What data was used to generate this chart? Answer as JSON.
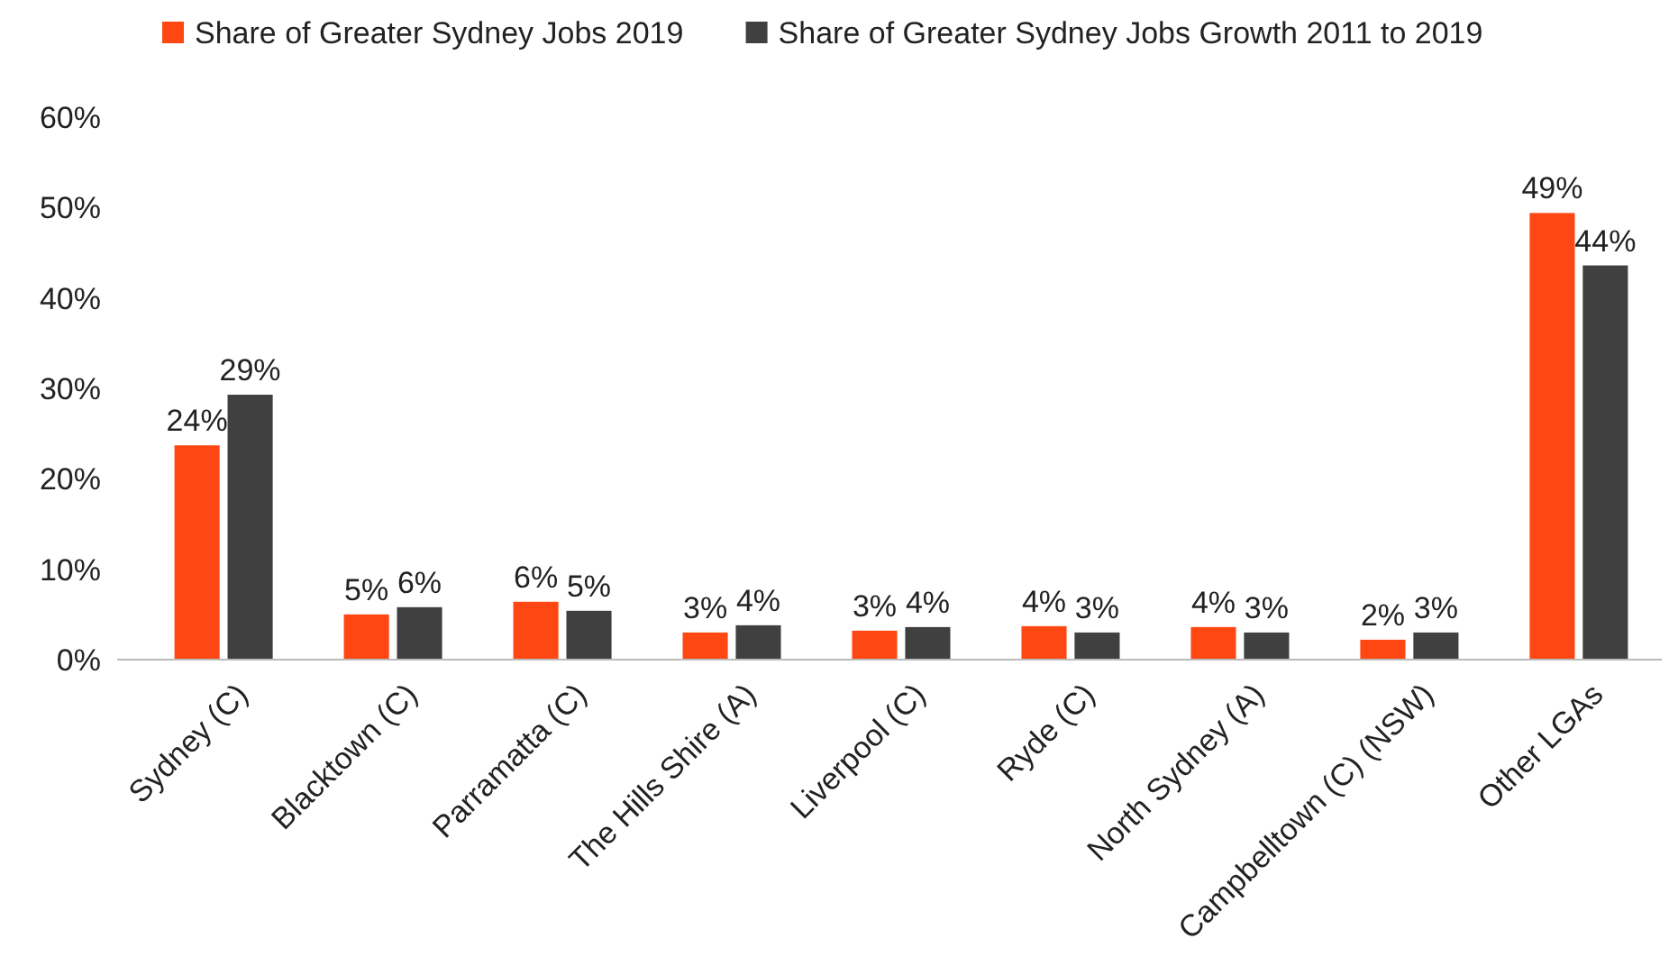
{
  "chart_data": {
    "type": "bar",
    "categories": [
      "Sydney (C)",
      "Blacktown (C)",
      "Parramatta (C)",
      "The Hills Shire (A)",
      "Liverpool (C)",
      "Ryde (C)",
      "North Sydney (A)",
      "Campbelltown (C) (NSW)",
      "Other LGAs"
    ],
    "series": [
      {
        "name": "Share of Greater Sydney Jobs 2019",
        "color": "#ff4713",
        "values": [
          23.7,
          5.0,
          6.4,
          3.0,
          3.2,
          3.7,
          3.6,
          2.2,
          49.4
        ],
        "value_labels": [
          "24%",
          "5%",
          "6%",
          "3%",
          "3%",
          "4%",
          "4%",
          "2%",
          "49%"
        ]
      },
      {
        "name": "Share of Greater Sydney Jobs Growth 2011 to 2019",
        "color": "#404040",
        "values": [
          29.3,
          5.8,
          5.4,
          3.8,
          3.6,
          3.0,
          3.0,
          3.0,
          43.6
        ],
        "value_labels": [
          "29%",
          "6%",
          "5%",
          "4%",
          "4%",
          "3%",
          "3%",
          "3%",
          "44%"
        ]
      }
    ],
    "ylim": [
      0,
      60
    ],
    "yticks": [
      {
        "value": 0,
        "label": "0%"
      },
      {
        "value": 10,
        "label": "10%"
      },
      {
        "value": 20,
        "label": "20%"
      },
      {
        "value": 30,
        "label": "30%"
      },
      {
        "value": 40,
        "label": "40%"
      },
      {
        "value": 50,
        "label": "50%"
      },
      {
        "value": 60,
        "label": "60%"
      }
    ],
    "grid": false,
    "legend": "top left"
  }
}
